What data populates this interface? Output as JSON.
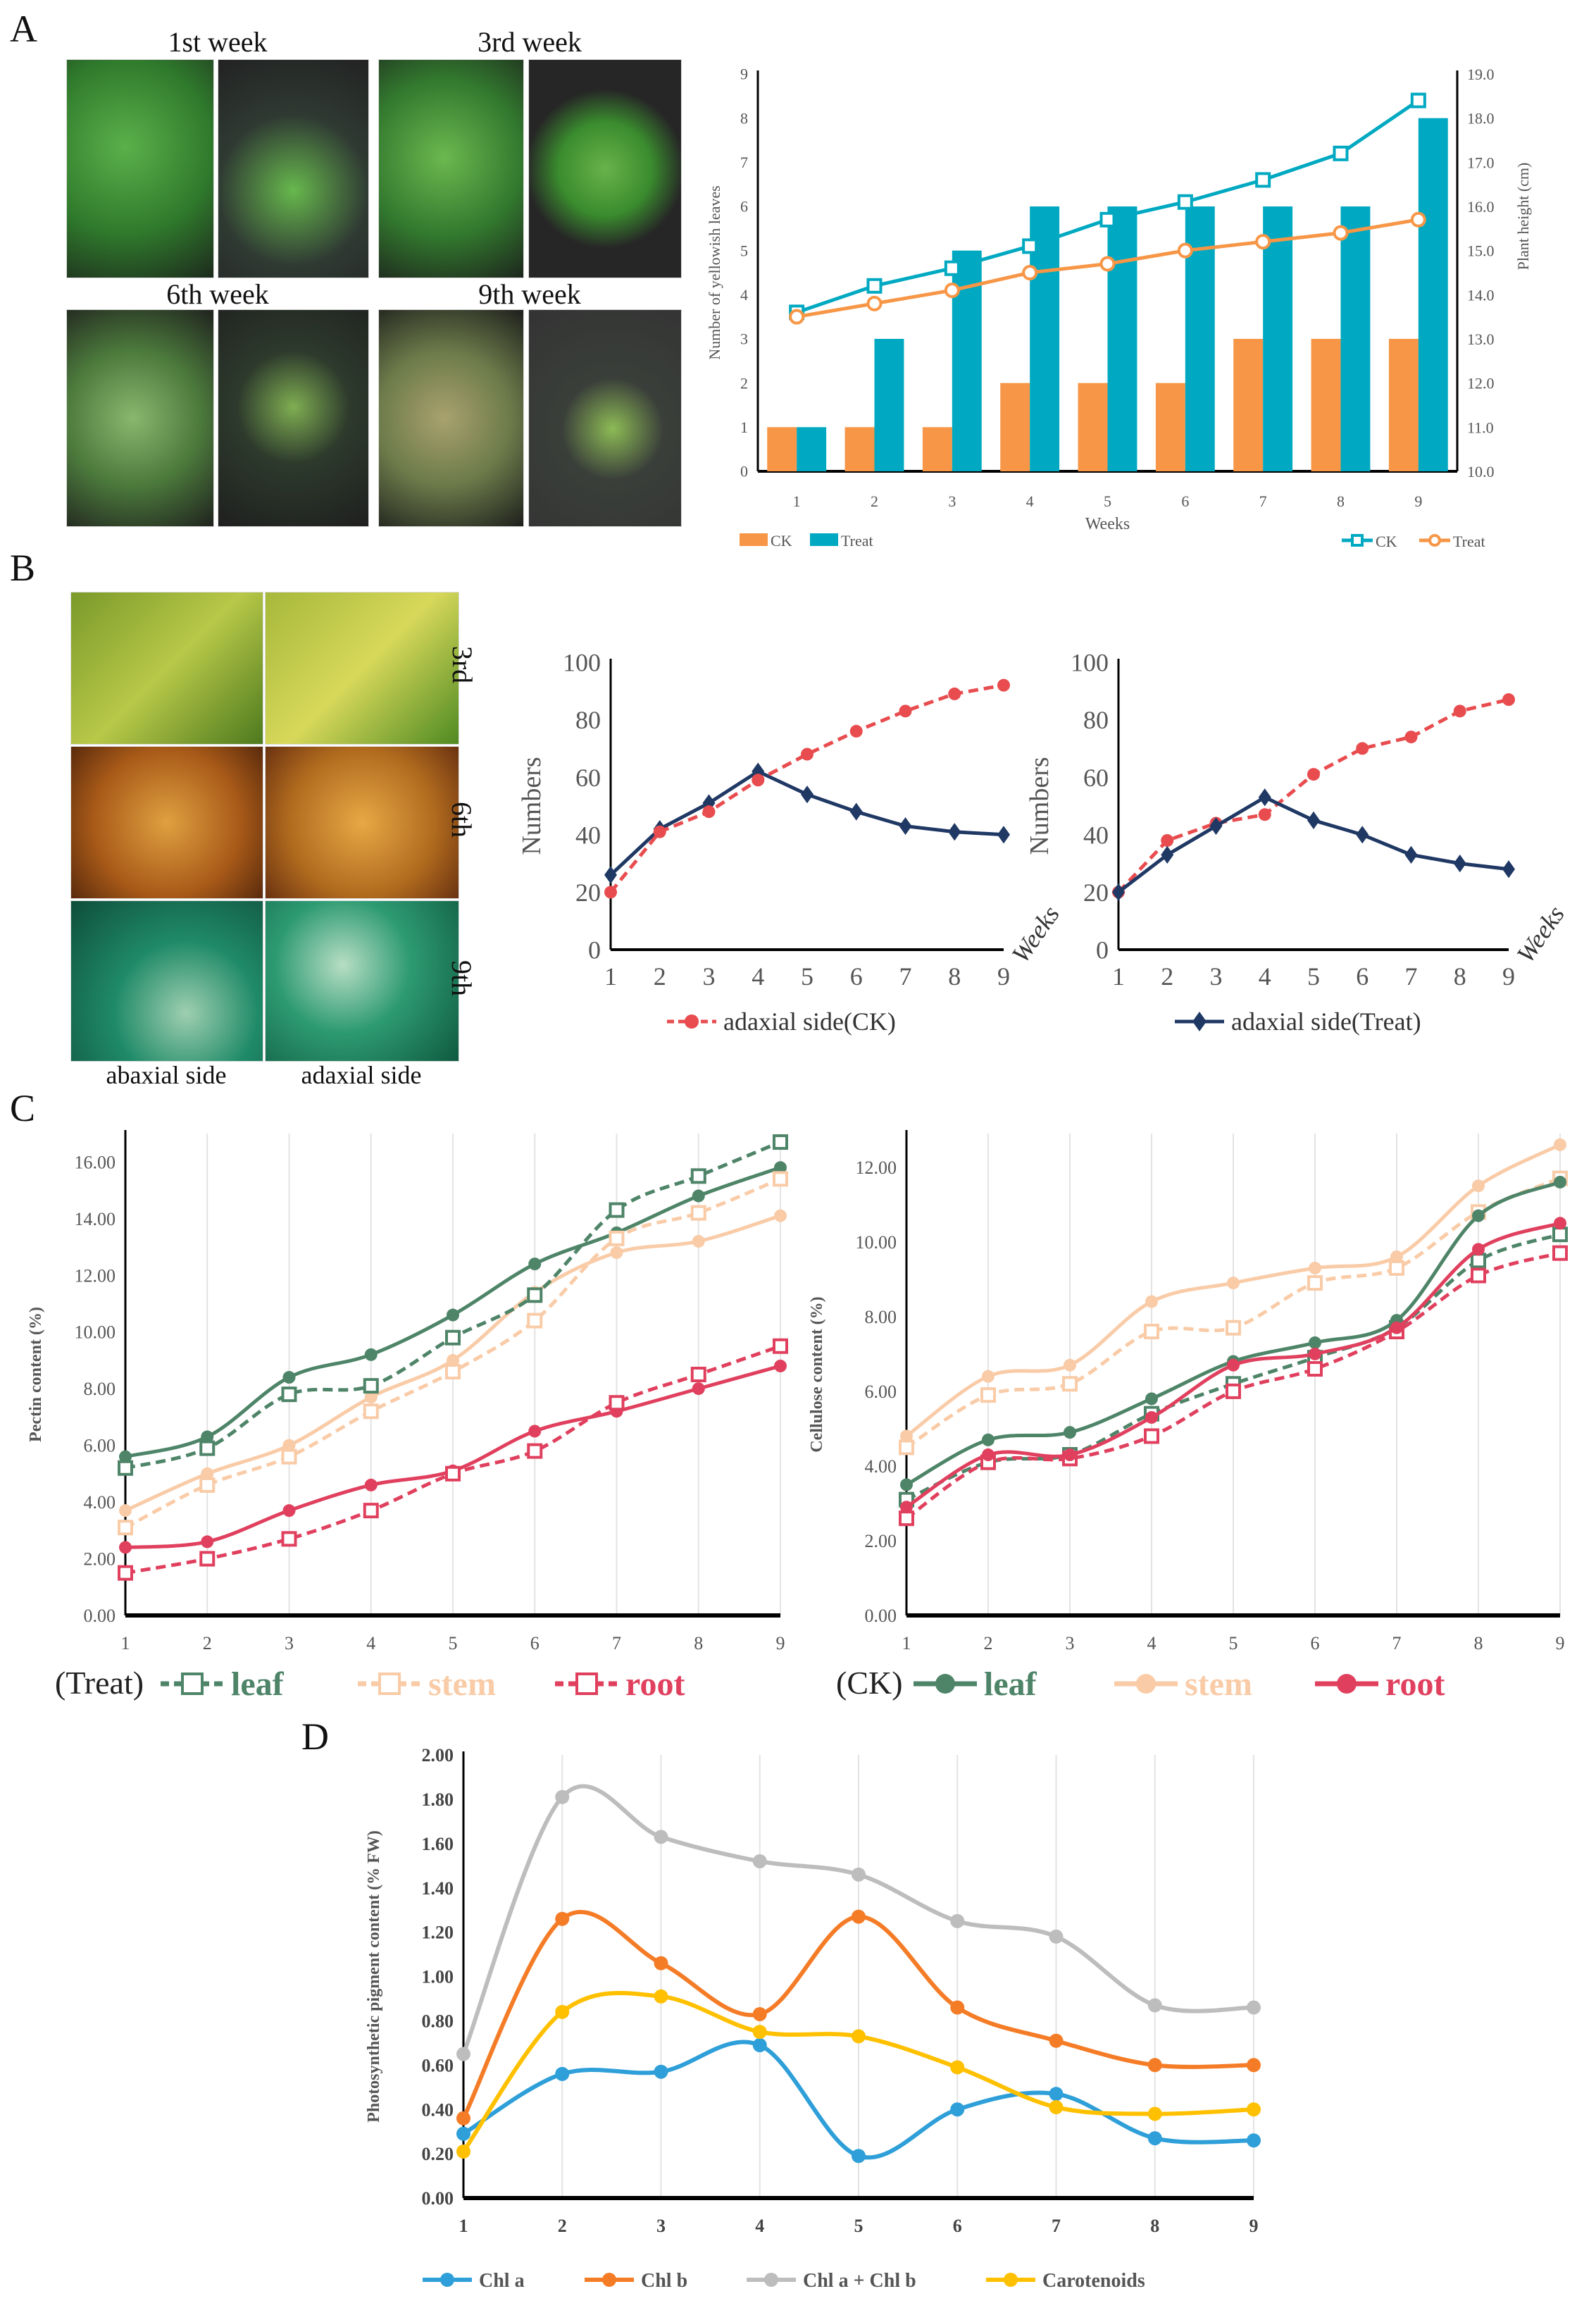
{
  "panels": {
    "a": "A",
    "b": "B",
    "c": "C",
    "d": "D"
  },
  "panel_a_photos": {
    "week1": "1st week",
    "week3": "3rd week",
    "week6": "6th week",
    "week9": "9th week"
  },
  "panel_b_photos": {
    "row1": "3rd",
    "row2": "6th",
    "row3": "9th",
    "col1": "abaxial side",
    "col2": "adaxial side"
  },
  "colors": {
    "ck_bar": "#F79646",
    "treat_bar": "#00A9C1",
    "navy": "#1F3864",
    "red": "#E84C4F",
    "leaf": "#4E8468",
    "stem": "#F9CBA7",
    "root": "#E0405E",
    "chla": "#2E9FD8",
    "chlb": "#F57C27",
    "total": "#BDBDBD",
    "car": "#FFC000"
  },
  "chart_data": [
    {
      "id": "A",
      "type": "bar+line",
      "x": [
        1,
        2,
        3,
        4,
        5,
        6,
        7,
        8,
        9
      ],
      "xlabel": "Weeks",
      "ylabel": "Number of yellowish leaves",
      "ylim": [
        0,
        9
      ],
      "yticks": [
        "0",
        "1",
        "2",
        "3",
        "4",
        "5",
        "6",
        "7",
        "8",
        "9"
      ],
      "y2label": "Plant height (cm)",
      "y2lim": [
        10,
        19
      ],
      "y2ticks": [
        "10.0",
        "11.0",
        "12.0",
        "13.0",
        "14.0",
        "15.0",
        "16.0",
        "17.0",
        "18.0",
        "19.0"
      ],
      "bars": [
        {
          "name": "CK",
          "color": "#F79646",
          "values": [
            1,
            1,
            1,
            2,
            2,
            2,
            3,
            3,
            3
          ]
        },
        {
          "name": "Treat",
          "color": "#00A9C1",
          "values": [
            1,
            3,
            5,
            6,
            6,
            6,
            6,
            6,
            8
          ]
        }
      ],
      "lines": [
        {
          "name": "CK",
          "color": "#00A9C1",
          "marker": "square-open",
          "values": [
            13.6,
            14.2,
            14.6,
            15.1,
            15.7,
            16.1,
            16.6,
            17.2,
            18.4
          ]
        },
        {
          "name": "Treat",
          "color": "#F79646",
          "marker": "circle-open",
          "values": [
            13.5,
            13.8,
            14.1,
            14.5,
            14.7,
            15.0,
            15.2,
            15.4,
            15.7
          ]
        }
      ]
    },
    {
      "id": "B1",
      "type": "line",
      "x": [
        1,
        2,
        3,
        4,
        5,
        6,
        7,
        8,
        9
      ],
      "xlabel": "Weeks",
      "ylabel": "Numbers",
      "ylim": [
        0,
        100
      ],
      "yticks": [
        "0",
        "20",
        "40",
        "60",
        "80",
        "100"
      ],
      "series": [
        {
          "name": "adaxial side(Treat)",
          "color": "#1F3864",
          "marker": "diamond",
          "dashed": false,
          "legend": false,
          "values": [
            26,
            42,
            51,
            62,
            54,
            48,
            43,
            41,
            40
          ]
        },
        {
          "name": "adaxial side(CK)",
          "color": "#E84C4F",
          "marker": "circle",
          "dashed": true,
          "legend": true,
          "values": [
            20,
            41,
            48,
            59,
            68,
            76,
            83,
            89,
            92
          ]
        }
      ]
    },
    {
      "id": "B2",
      "type": "line",
      "x": [
        1,
        2,
        3,
        4,
        5,
        6,
        7,
        8,
        9
      ],
      "xlabel": "Weeks",
      "ylabel": "Numbers",
      "ylim": [
        0,
        100
      ],
      "yticks": [
        "0",
        "20",
        "40",
        "60",
        "80",
        "100"
      ],
      "series": [
        {
          "name": "adaxial side(CK)",
          "color": "#E84C4F",
          "marker": "circle",
          "dashed": true,
          "legend": false,
          "values": [
            20,
            38,
            44,
            47,
            61,
            70,
            74,
            83,
            87
          ]
        },
        {
          "name": "adaxial side(Treat)",
          "color": "#1F3864",
          "marker": "diamond",
          "dashed": false,
          "legend": true,
          "values": [
            20,
            33,
            43,
            53,
            45,
            40,
            33,
            30,
            28
          ]
        }
      ]
    },
    {
      "id": "C1",
      "type": "line",
      "smooth": true,
      "x": [
        1,
        2,
        3,
        4,
        5,
        6,
        7,
        8,
        9
      ],
      "ylabel": "Pectin content (%)",
      "ylim": [
        0,
        17
      ],
      "yticks": [
        "0.00",
        "2.00",
        "4.00",
        "6.00",
        "8.00",
        "10.00",
        "12.00",
        "14.00",
        "16.00"
      ],
      "legend_prefix": "(Treat)",
      "series": [
        {
          "name": "leaf",
          "color": "#4E8468",
          "marker": "circle",
          "dashed": false,
          "legend": false,
          "values": [
            5.6,
            6.3,
            8.4,
            9.2,
            10.6,
            12.4,
            13.5,
            14.8,
            15.8
          ]
        },
        {
          "name": "stem",
          "color": "#F9CBA7",
          "marker": "circle",
          "dashed": false,
          "legend": false,
          "values": [
            3.7,
            5.0,
            6.0,
            7.7,
            9.0,
            11.4,
            12.8,
            13.2,
            14.1
          ]
        },
        {
          "name": "root",
          "color": "#E0405E",
          "marker": "circle",
          "dashed": false,
          "legend": false,
          "values": [
            2.4,
            2.6,
            3.7,
            4.6,
            5.1,
            6.5,
            7.2,
            8.0,
            8.8
          ]
        },
        {
          "name": "leaf",
          "color": "#4E8468",
          "marker": "square-open",
          "dashed": true,
          "legend": true,
          "values": [
            5.2,
            5.9,
            7.8,
            8.1,
            9.8,
            11.3,
            14.3,
            15.5,
            16.7
          ]
        },
        {
          "name": "stem",
          "color": "#F9CBA7",
          "marker": "square-open",
          "dashed": true,
          "legend": true,
          "values": [
            3.1,
            4.6,
            5.6,
            7.2,
            8.6,
            10.4,
            13.3,
            14.2,
            15.4
          ]
        },
        {
          "name": "root",
          "color": "#E0405E",
          "marker": "square-open",
          "dashed": true,
          "legend": true,
          "values": [
            1.5,
            2.0,
            2.7,
            3.7,
            5.0,
            5.8,
            7.5,
            8.5,
            9.5
          ]
        }
      ]
    },
    {
      "id": "C2",
      "type": "line",
      "smooth": true,
      "x": [
        1,
        2,
        3,
        4,
        5,
        6,
        7,
        8,
        9
      ],
      "ylabel": "Cellulose content (%)",
      "ylim": [
        0,
        12.9
      ],
      "yticks": [
        "0.00",
        "2.00",
        "4.00",
        "6.00",
        "8.00",
        "10.00",
        "12.00"
      ],
      "legend_prefix": "(CK)",
      "series": [
        {
          "name": "leaf",
          "color": "#4E8468",
          "marker": "square-open",
          "dashed": true,
          "legend": false,
          "values": [
            3.1,
            4.1,
            4.3,
            5.4,
            6.2,
            6.9,
            7.7,
            9.5,
            10.2
          ]
        },
        {
          "name": "stem",
          "color": "#F9CBA7",
          "marker": "square-open",
          "dashed": true,
          "legend": false,
          "values": [
            4.5,
            5.9,
            6.2,
            7.6,
            7.7,
            8.9,
            9.3,
            10.8,
            11.7
          ]
        },
        {
          "name": "root",
          "color": "#E0405E",
          "marker": "square-open",
          "dashed": true,
          "legend": false,
          "values": [
            2.6,
            4.1,
            4.2,
            4.8,
            6.0,
            6.6,
            7.6,
            9.1,
            9.7
          ]
        },
        {
          "name": "leaf",
          "color": "#4E8468",
          "marker": "circle",
          "dashed": false,
          "legend": true,
          "values": [
            3.5,
            4.7,
            4.9,
            5.8,
            6.8,
            7.3,
            7.9,
            10.7,
            11.6
          ]
        },
        {
          "name": "stem",
          "color": "#F9CBA7",
          "marker": "circle",
          "dashed": false,
          "legend": true,
          "values": [
            4.8,
            6.4,
            6.7,
            8.4,
            8.9,
            9.3,
            9.6,
            11.5,
            12.6
          ]
        },
        {
          "name": "root",
          "color": "#E0405E",
          "marker": "circle",
          "dashed": false,
          "legend": true,
          "values": [
            2.9,
            4.3,
            4.3,
            5.3,
            6.7,
            7.0,
            7.7,
            9.8,
            10.5
          ]
        }
      ]
    },
    {
      "id": "D",
      "type": "line",
      "smooth": true,
      "x": [
        1,
        2,
        3,
        4,
        5,
        6,
        7,
        8,
        9
      ],
      "ylabel": "Photosynthetic pigment content (% FW)",
      "ylim": [
        0,
        2
      ],
      "yticks": [
        "0.00",
        "0.20",
        "0.40",
        "0.60",
        "0.80",
        "1.00",
        "1.20",
        "1.40",
        "1.60",
        "1.80",
        "2.00"
      ],
      "series": [
        {
          "name": "Chl a",
          "color": "#2E9FD8",
          "marker": "circle",
          "dashed": false,
          "legend": true,
          "values": [
            0.29,
            0.56,
            0.57,
            0.69,
            0.19,
            0.4,
            0.47,
            0.27,
            0.26
          ]
        },
        {
          "name": "Chl b",
          "color": "#F57C27",
          "marker": "circle",
          "dashed": false,
          "legend": true,
          "values": [
            0.36,
            1.26,
            1.06,
            0.83,
            1.27,
            0.86,
            0.71,
            0.6,
            0.6
          ]
        },
        {
          "name": "Chl a + Chl b",
          "color": "#BDBDBD",
          "marker": "circle",
          "dashed": false,
          "legend": true,
          "values": [
            0.65,
            1.81,
            1.63,
            1.52,
            1.46,
            1.25,
            1.18,
            0.87,
            0.86
          ]
        },
        {
          "name": "Carotenoids",
          "color": "#FFC000",
          "marker": "circle",
          "dashed": false,
          "legend": true,
          "values": [
            0.21,
            0.84,
            0.91,
            0.75,
            0.73,
            0.59,
            0.41,
            0.38,
            0.4
          ]
        }
      ]
    }
  ]
}
